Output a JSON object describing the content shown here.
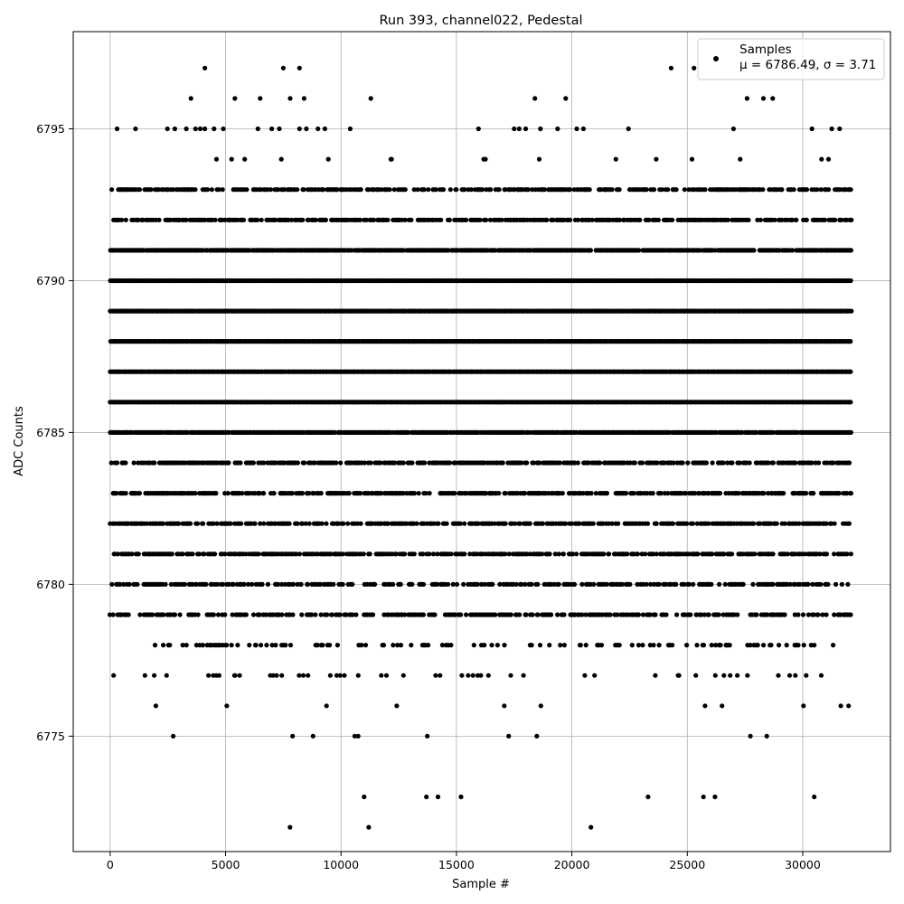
{
  "chart_data": {
    "type": "scatter",
    "title": "Run 393, channel022, Pedestal",
    "xlabel": "Sample #",
    "ylabel": "ADC Counts",
    "xlim": [
      -1600,
      33800
    ],
    "ylim": [
      6771.2,
      6798.2
    ],
    "x_ticks": [
      0,
      5000,
      10000,
      15000,
      20000,
      25000,
      30000
    ],
    "y_ticks": [
      6775,
      6780,
      6785,
      6790,
      6795
    ],
    "grid": true,
    "legend_position": "top-right",
    "marker_color": "#000000",
    "series": [
      {
        "name": "Samples",
        "stats_label": "μ = 6786.49, σ = 3.71",
        "x_range": [
          0,
          32100
        ],
        "level_density": {
          "6772": 0.0003,
          "6773": 0.0008,
          "6774": 0.0,
          "6775": 0.012,
          "6776": 0.02,
          "6777": 0.09,
          "6778": 0.2,
          "6779": 0.5,
          "6780": 0.45,
          "6781": 0.6,
          "6782": 0.58,
          "6783": 0.6,
          "6784": 0.6,
          "6785": 0.95,
          "6786": 1.0,
          "6787": 1.0,
          "6788": 1.0,
          "6789": 1.0,
          "6790": 1.0,
          "6791": 0.92,
          "6792": 0.6,
          "6793": 0.55,
          "6794": 0.03,
          "6795": 0.012,
          "6796": 0.005,
          "6797": 0.003
        },
        "sparse_points": [
          {
            "x": 11200,
            "y": 6772
          },
          {
            "x": 11000,
            "y": 6773
          },
          {
            "x": 13700,
            "y": 6773
          },
          {
            "x": 14200,
            "y": 6773
          },
          {
            "x": 15200,
            "y": 6773
          },
          {
            "x": 23300,
            "y": 6773
          },
          {
            "x": 25700,
            "y": 6773
          },
          {
            "x": 26200,
            "y": 6773
          },
          {
            "x": 30500,
            "y": 6773
          },
          {
            "x": 4100,
            "y": 6797
          },
          {
            "x": 7500,
            "y": 6797
          },
          {
            "x": 8200,
            "y": 6797
          },
          {
            "x": 24300,
            "y": 6797
          },
          {
            "x": 3500,
            "y": 6796
          },
          {
            "x": 5400,
            "y": 6796
          },
          {
            "x": 6500,
            "y": 6796
          },
          {
            "x": 7800,
            "y": 6796
          },
          {
            "x": 8400,
            "y": 6796
          },
          {
            "x": 18400,
            "y": 6796
          },
          {
            "x": 28300,
            "y": 6796
          },
          {
            "x": 28700,
            "y": 6796
          },
          {
            "x": 300,
            "y": 6795
          },
          {
            "x": 1100,
            "y": 6795
          },
          {
            "x": 2800,
            "y": 6795
          },
          {
            "x": 3300,
            "y": 6795
          },
          {
            "x": 3700,
            "y": 6795
          },
          {
            "x": 3900,
            "y": 6795
          },
          {
            "x": 4100,
            "y": 6795
          },
          {
            "x": 4500,
            "y": 6795
          },
          {
            "x": 4900,
            "y": 6795
          },
          {
            "x": 6400,
            "y": 6795
          },
          {
            "x": 7000,
            "y": 6795
          },
          {
            "x": 8200,
            "y": 6795
          },
          {
            "x": 8500,
            "y": 6795
          },
          {
            "x": 9000,
            "y": 6795
          },
          {
            "x": 9300,
            "y": 6795
          },
          {
            "x": 10400,
            "y": 6795
          },
          {
            "x": 17500,
            "y": 6795
          },
          {
            "x": 18000,
            "y": 6795
          },
          {
            "x": 20500,
            "y": 6795
          },
          {
            "x": 27000,
            "y": 6795
          },
          {
            "x": 30400,
            "y": 6795
          },
          {
            "x": 31600,
            "y": 6795
          }
        ]
      }
    ]
  }
}
